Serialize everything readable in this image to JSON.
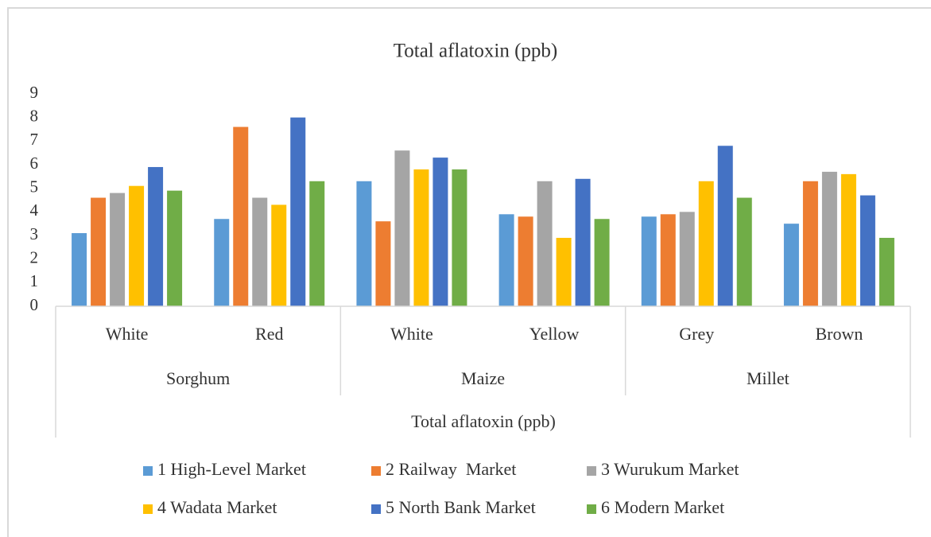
{
  "chart_data": {
    "type": "bar",
    "title": "Total aflatoxin (ppb)",
    "x_label": "Total aflatoxin (ppb)",
    "categories": [
      "White",
      "Red",
      "White",
      "Yellow",
      "Grey",
      "Brown"
    ],
    "group_labels": [
      "Sorghum",
      "Maize",
      "Millet"
    ],
    "series": [
      {
        "name": "1 High-Level Market",
        "color": "#5b9bd5",
        "values": [
          3.1,
          3.7,
          5.3,
          3.9,
          3.8,
          3.5
        ]
      },
      {
        "name": "2 Railway  Market",
        "color": "#ed7d31",
        "values": [
          4.6,
          7.6,
          3.6,
          3.8,
          3.9,
          5.3
        ]
      },
      {
        "name": "3 Wurukum Market",
        "color": "#a5a5a5",
        "values": [
          4.8,
          4.6,
          6.6,
          5.3,
          4.0,
          5.7
        ]
      },
      {
        "name": "4 Wadata Market",
        "color": "#ffc000",
        "values": [
          5.1,
          4.3,
          5.8,
          2.9,
          5.3,
          5.6
        ]
      },
      {
        "name": "5 North Bank Market",
        "color": "#4472c4",
        "values": [
          5.9,
          8.0,
          6.3,
          5.4,
          6.8,
          4.7
        ]
      },
      {
        "name": "6 Modern Market",
        "color": "#70ad47",
        "values": [
          4.9,
          5.3,
          5.8,
          3.7,
          4.6,
          2.9
        ]
      }
    ],
    "ylim": [
      0,
      9
    ],
    "yticks": [
      0,
      1,
      2,
      3,
      4,
      5,
      6,
      7,
      8,
      9
    ],
    "grid": false,
    "legend": "bottom"
  }
}
